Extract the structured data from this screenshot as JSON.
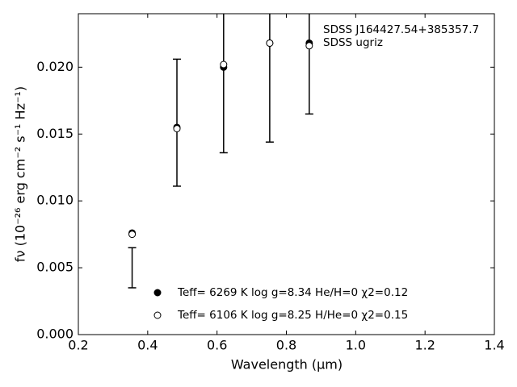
{
  "chart_data": {
    "type": "scatter",
    "xlabel": "Wavelength (μm)",
    "ylabel": "fν (10⁻²⁶ erg cm⁻² s⁻¹ Hz⁻¹)",
    "annotations": [
      "SDSS J164427.54+385357.7",
      "SDSS ugriz"
    ],
    "x": [
      0.3551,
      0.4843,
      0.619,
      0.752,
      0.866
    ],
    "series": [
      {
        "name": "Teff=  6269 K  log g=8.34  He/H=0  χ2=0.12",
        "marker": "filled",
        "color": "#000000",
        "values": [
          0.0076,
          0.0155,
          0.02,
          0.0218,
          0.0218
        ]
      },
      {
        "name": "Teff=  6106 K  log g=8.25  H/He=0  χ2=0.15",
        "marker": "open",
        "color": "#000000",
        "values": [
          0.0075,
          0.0154,
          0.0202,
          0.0218,
          0.0216
        ]
      }
    ],
    "observed": {
      "color": "#000000",
      "values": [
        0.005,
        0.01585,
        0.02,
        0.0218,
        0.0218
      ],
      "errors": [
        0.0015,
        0.00475,
        0.0064,
        0.0074,
        0.0053
      ]
    },
    "xlim": [
      0.2,
      1.4
    ],
    "xticks": [
      0.2,
      0.4,
      0.6,
      0.8,
      {
        "value": 1.0,
        "label": "1.0"
      },
      1.2,
      1.4
    ],
    "ylim": [
      0,
      0.024
    ],
    "yticks": [
      {
        "value": 0,
        "label": "0.000"
      },
      {
        "value": 0.005,
        "label": "0.005"
      },
      {
        "value": 0.01,
        "label": "0.010"
      },
      {
        "value": 0.015,
        "label": "0.015"
      },
      {
        "value": 0.02,
        "label": "0.020"
      }
    ],
    "legend": "lower center",
    "grid": false
  }
}
